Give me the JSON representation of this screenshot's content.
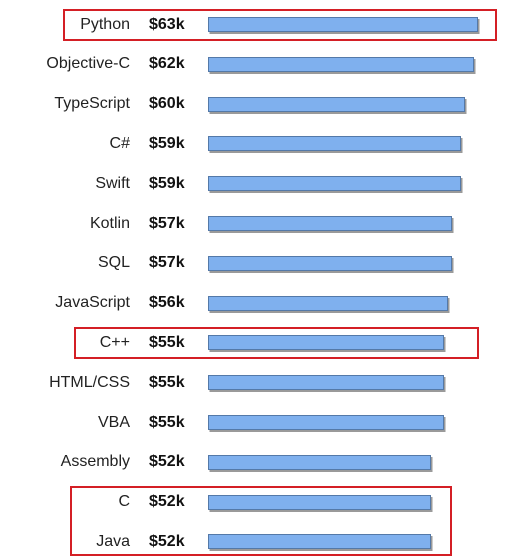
{
  "chart_data": {
    "type": "bar",
    "orientation": "horizontal",
    "categories": [
      "Python",
      "Objective-C",
      "TypeScript",
      "C#",
      "Swift",
      "Kotlin",
      "SQL",
      "JavaScript",
      "C++",
      "HTML/CSS",
      "VBA",
      "Assembly",
      "C",
      "Java"
    ],
    "value_labels": [
      "$63k",
      "$62k",
      "$60k",
      "$59k",
      "$59k",
      "$57k",
      "$57k",
      "$56k",
      "$55k",
      "$55k",
      "$55k",
      "$52k",
      "$52k",
      "$52k"
    ],
    "series": [
      {
        "values": [
          63,
          62,
          60,
          59,
          59,
          57,
          57,
          56,
          55,
          55,
          55,
          52,
          52,
          52
        ]
      }
    ],
    "unit": "$k",
    "highlighted": [
      [
        "Python"
      ],
      [
        "C++"
      ],
      [
        "C",
        "Java"
      ]
    ],
    "colors": {
      "bar_fill": "#7fb0ee",
      "bar_border": "#5479a8",
      "highlight": "#d41f25"
    },
    "grid": false,
    "legend": "none"
  }
}
